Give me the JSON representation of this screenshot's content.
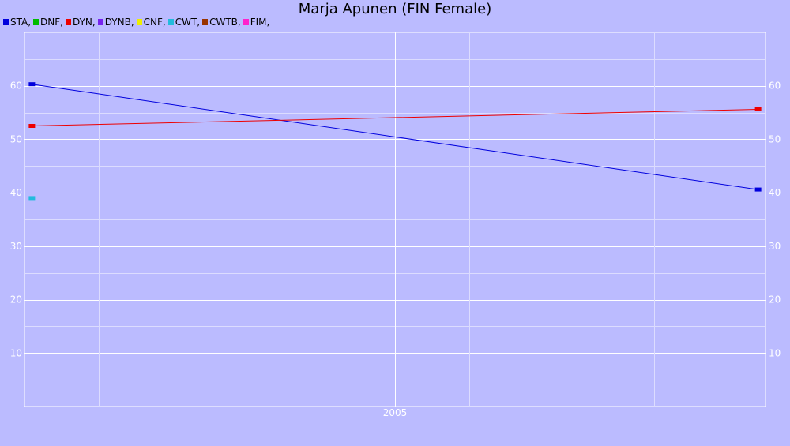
{
  "chart_data": {
    "type": "line",
    "title": "Marja Apunen (FIN Female)",
    "xlabel": "",
    "ylabel": "",
    "x_ticks": [
      "2005"
    ],
    "y_ticks": [
      10,
      20,
      30,
      40,
      50,
      60
    ],
    "xlim": [
      2000.0,
      2010.0
    ],
    "ylim": [
      0,
      70
    ],
    "grid": true,
    "legend": [
      {
        "name": "STA",
        "label": "STA,",
        "color": "#0000dd"
      },
      {
        "name": "DNF",
        "label": "DNF,",
        "color": "#00bb00"
      },
      {
        "name": "DYN",
        "label": "DYN,",
        "color": "#ee0000"
      },
      {
        "name": "DYNB",
        "label": "DYNB,",
        "color": "#7722ee"
      },
      {
        "name": "CNF",
        "label": "CNF,",
        "color": "#eeee00"
      },
      {
        "name": "CWT",
        "label": "CWT,",
        "color": "#22bbdd"
      },
      {
        "name": "CWTB",
        "label": "CWTB,",
        "color": "#993300"
      },
      {
        "name": "FIM",
        "label": "FIM,",
        "color": "#ff22cc"
      }
    ],
    "series": [
      {
        "name": "STA",
        "color": "#0000dd",
        "points": [
          [
            2000.1,
            60.3
          ],
          [
            2009.9,
            40.6
          ]
        ]
      },
      {
        "name": "DYN",
        "color": "#ee0000",
        "points": [
          [
            2000.1,
            52.5
          ],
          [
            2009.9,
            55.6
          ]
        ]
      },
      {
        "name": "CWT",
        "color": "#22bbdd",
        "points": [
          [
            2000.1,
            39.0
          ]
        ]
      }
    ]
  }
}
